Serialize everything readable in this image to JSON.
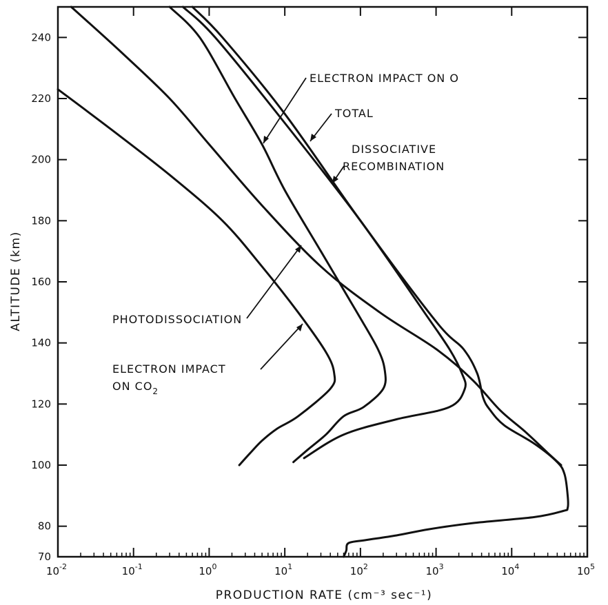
{
  "chart_data": {
    "type": "line",
    "xscale": "log",
    "xlim": [
      0.01,
      100000
    ],
    "ylim": [
      70,
      250
    ],
    "xlabel": "PRODUCTION RATE (cm⁻³ sec⁻¹)",
    "ylabel": "ALTITUDE (km)",
    "xticks": [
      {
        "base": "10",
        "exp": "-2",
        "value": 0.01
      },
      {
        "base": "10",
        "exp": "-1",
        "value": 0.1
      },
      {
        "base": "10",
        "exp": "0",
        "value": 1
      },
      {
        "base": "10",
        "exp": "1",
        "value": 10
      },
      {
        "base": "10",
        "exp": "2",
        "value": 100
      },
      {
        "base": "10",
        "exp": "3",
        "value": 1000
      },
      {
        "base": "10",
        "exp": "4",
        "value": 10000
      },
      {
        "base": "10",
        "exp": "5",
        "value": 100000
      }
    ],
    "yticks": [
      70,
      80,
      100,
      120,
      140,
      160,
      180,
      200,
      220,
      240
    ],
    "series": [
      {
        "name": "TOTAL",
        "points": [
          [
            0.6,
            250
          ],
          [
            1.5,
            240
          ],
          [
            10,
            215
          ],
          [
            100,
            180
          ],
          [
            1000,
            147
          ],
          [
            2300,
            138
          ],
          [
            3500,
            130
          ],
          [
            4200,
            122
          ],
          [
            5200,
            118
          ],
          [
            8000,
            113
          ],
          [
            20000,
            107
          ],
          [
            40000,
            101
          ],
          [
            50000,
            97
          ],
          [
            55000,
            90
          ],
          [
            55000,
            86
          ],
          [
            48000,
            85
          ],
          [
            20000,
            83
          ],
          [
            3000,
            81
          ],
          [
            800,
            79
          ],
          [
            300,
            77
          ],
          [
            120,
            75.5
          ],
          [
            70,
            74.5
          ],
          [
            65,
            72
          ],
          [
            60,
            70
          ]
        ]
      },
      {
        "name": "DISSOCIATIVE RECOMBINATION",
        "points": [
          [
            0.45,
            250
          ],
          [
            1.2,
            240
          ],
          [
            10,
            212
          ],
          [
            100,
            180
          ],
          [
            700,
            150
          ],
          [
            1500,
            138
          ],
          [
            2200,
            130
          ],
          [
            2400,
            125
          ],
          [
            1500,
            119
          ],
          [
            300,
            115
          ],
          [
            60,
            110
          ],
          [
            18,
            102.3
          ]
        ]
      },
      {
        "name": "ELECTRON IMPACT ON O",
        "points": [
          [
            0.3,
            250
          ],
          [
            0.75,
            240
          ],
          [
            2.2,
            220
          ],
          [
            5,
            205
          ],
          [
            10,
            190
          ],
          [
            30,
            170
          ],
          [
            90,
            150
          ],
          [
            170,
            138
          ],
          [
            210,
            131
          ],
          [
            200,
            125
          ],
          [
            110,
            119
          ],
          [
            60,
            116
          ],
          [
            35,
            110
          ],
          [
            20,
            105
          ],
          [
            13,
            101
          ]
        ]
      },
      {
        "name": "PHOTODISSOCIATION",
        "points": [
          [
            0.015,
            250
          ],
          [
            0.07,
            235
          ],
          [
            0.3,
            220
          ],
          [
            1,
            205
          ],
          [
            5,
            185
          ],
          [
            30,
            165
          ],
          [
            180,
            150
          ],
          [
            1000,
            138
          ],
          [
            3000,
            128
          ],
          [
            7000,
            118
          ],
          [
            15000,
            111
          ],
          [
            30000,
            104
          ],
          [
            45000,
            100
          ]
        ]
      },
      {
        "name": "ELECTRON IMPACT ON CO2",
        "points": [
          [
            0.01,
            223
          ],
          [
            0.05,
            210
          ],
          [
            0.3,
            195
          ],
          [
            1.5,
            180
          ],
          [
            5,
            165
          ],
          [
            15,
            150
          ],
          [
            35,
            137
          ],
          [
            45,
            130
          ],
          [
            40,
            125
          ],
          [
            15,
            116
          ],
          [
            8,
            112
          ],
          [
            5,
            108
          ],
          [
            3.5,
            104
          ],
          [
            2.5,
            100
          ]
        ]
      }
    ],
    "annotations": {
      "electron_impact_o": "ELECTRON IMPACT ON O",
      "total": "TOTAL",
      "dissociative_1": "DISSOCIATIVE",
      "dissociative_2": "RECOMBINATION",
      "photodissociation": "PHOTODISSOCIATION",
      "ei_co2_1": "ELECTRON IMPACT",
      "ei_co2_2_prefix": "ON CO",
      "ei_co2_2_sub": "2"
    }
  }
}
